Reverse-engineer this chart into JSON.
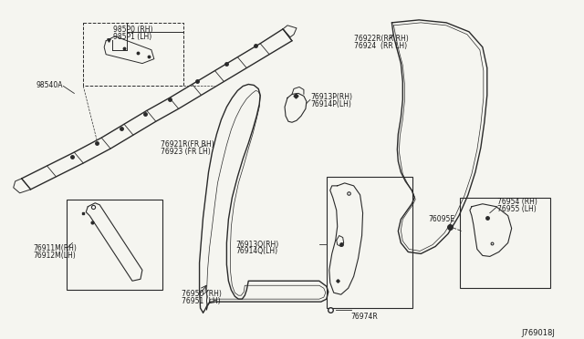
{
  "bg_color": "#f5f5f0",
  "line_color": "#2a2a2a",
  "diagram_id": "J769018J",
  "labels": {
    "985P0": "985P0 (RH)\n985P1 (LH)",
    "98540A": "98540A",
    "76921R": "76921R(FR RH)\n76923 (FR LH)",
    "76911M": "76911M(RH)\n76912M(LH)",
    "76950": "76950 (RH)\n76951 (LH)",
    "769130": "76913Q(RH)\n76914Q(LH)",
    "76974R": "76974R",
    "76922R": "76922R(RR RH)\n76924  (RR LH)",
    "76913P": "76913P(RH)\n76914P(LH)",
    "76095E": "76095E",
    "76954": "76954 (RH)\n76955 (LH)"
  },
  "font_size": 5.5,
  "font_color": "#1a1a1a"
}
